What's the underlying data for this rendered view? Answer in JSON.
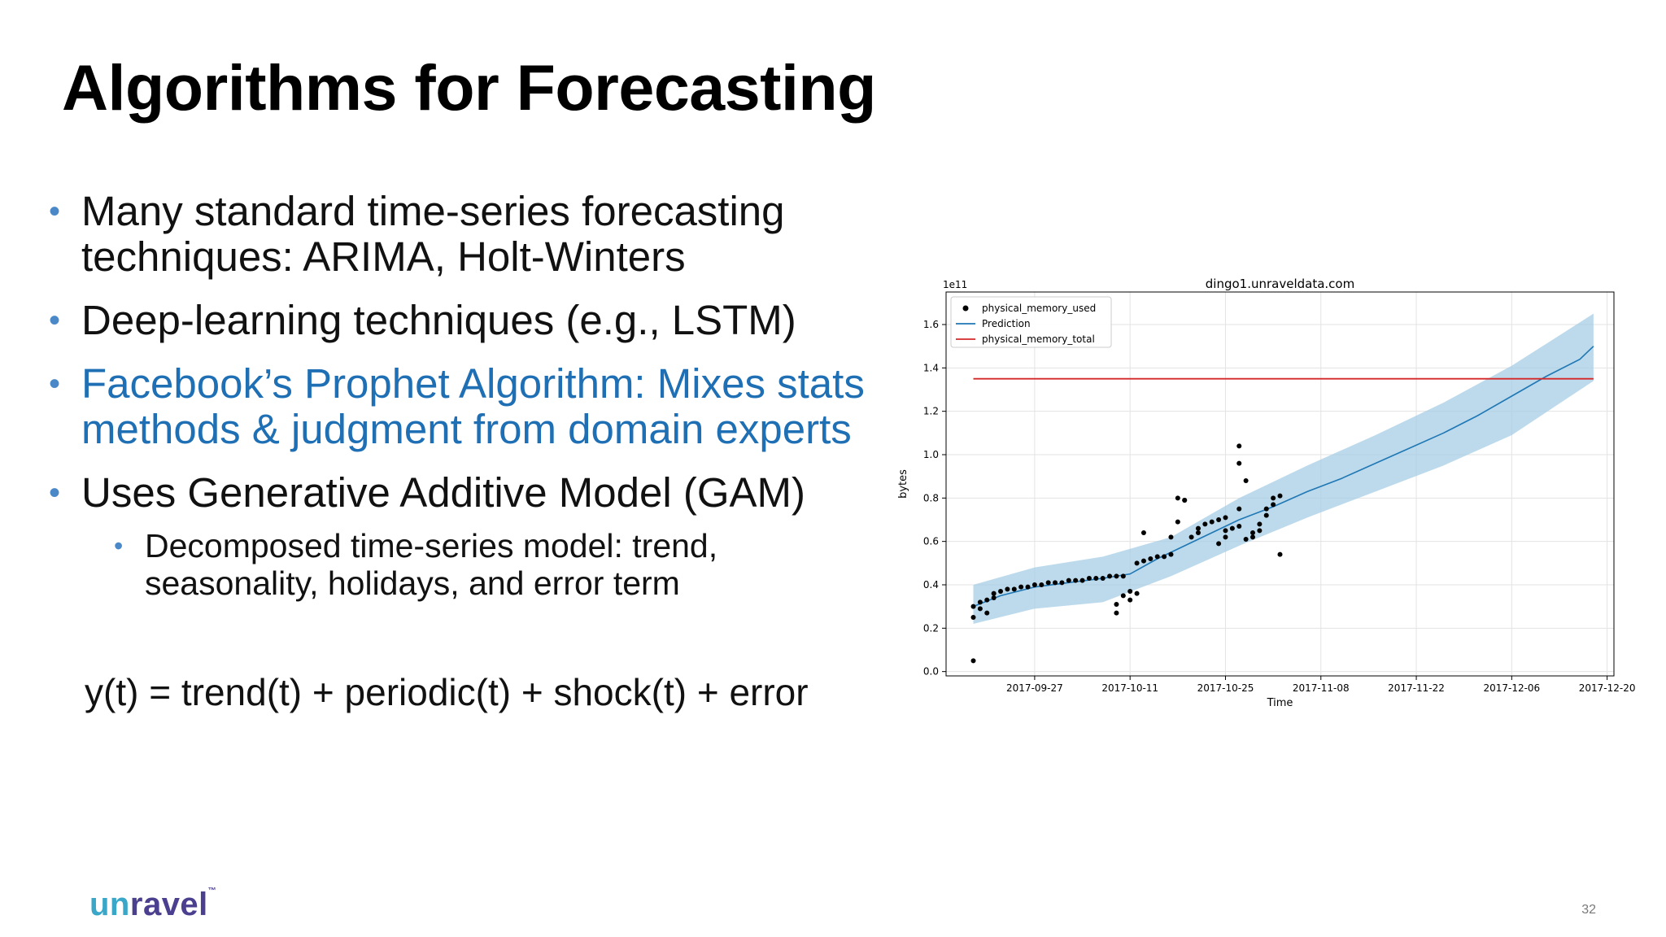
{
  "slide": {
    "title": "Algorithms for Forecasting",
    "bullets": [
      {
        "text": "Many standard time-series forecasting techniques: ARIMA, Holt-Winters"
      },
      {
        "text": "Deep-learning techniques (e.g., LSTM)"
      },
      {
        "text": "Facebook’s Prophet Algorithm: Mixes stats methods & judgment from domain experts"
      },
      {
        "text": "Uses Generative Additive Model (GAM)"
      }
    ],
    "sub_bullets": [
      {
        "text": "Decomposed time-series model: trend, seasonality, holidays, and error term"
      }
    ],
    "bullet_glyph": "•",
    "equation": "y(t) = trend(t) + periodic(t) + shock(t) + error",
    "logo": {
      "text_un": "un",
      "text_ravel": "ravel",
      "mark": "™"
    },
    "page_number": "32",
    "colors": {
      "accent_text": "#1f6fb5",
      "bullet": "#4a88c7",
      "logo_teal": "#3aa7c9",
      "logo_purple": "#4b3f8f"
    }
  },
  "chart_data": {
    "type": "line",
    "title": "dingo1.unraveldata.com",
    "xlabel": "Time",
    "ylabel": "bytes",
    "y_scale_label": "1e11",
    "x_ticks": [
      "2017-09-27",
      "2017-10-11",
      "2017-10-25",
      "2017-11-08",
      "2017-11-22",
      "2017-12-06",
      "2017-12-20"
    ],
    "y_ticks": [
      "0.0",
      "0.2",
      "0.4",
      "0.6",
      "0.8",
      "1.0",
      "1.2",
      "1.4",
      "1.6"
    ],
    "xlim": [
      "2017-09-14",
      "2017-12-21"
    ],
    "ylim": [
      -0.02,
      1.75
    ],
    "grid": true,
    "legend_position": "top-left",
    "series": [
      {
        "name": "physical_memory_used",
        "kind": "scatter",
        "color": "#000000",
        "points": [
          [
            "2017-09-18",
            0.05
          ],
          [
            "2017-09-18",
            0.25
          ],
          [
            "2017-09-18",
            0.3
          ],
          [
            "2017-09-19",
            0.29
          ],
          [
            "2017-09-19",
            0.32
          ],
          [
            "2017-09-20",
            0.27
          ],
          [
            "2017-09-20",
            0.33
          ],
          [
            "2017-09-21",
            0.34
          ],
          [
            "2017-09-21",
            0.36
          ],
          [
            "2017-09-22",
            0.37
          ],
          [
            "2017-09-23",
            0.38
          ],
          [
            "2017-09-24",
            0.38
          ],
          [
            "2017-09-25",
            0.39
          ],
          [
            "2017-09-26",
            0.39
          ],
          [
            "2017-09-27",
            0.4
          ],
          [
            "2017-09-28",
            0.4
          ],
          [
            "2017-09-29",
            0.41
          ],
          [
            "2017-09-30",
            0.41
          ],
          [
            "2017-10-01",
            0.41
          ],
          [
            "2017-10-02",
            0.42
          ],
          [
            "2017-10-03",
            0.42
          ],
          [
            "2017-10-04",
            0.42
          ],
          [
            "2017-10-05",
            0.43
          ],
          [
            "2017-10-06",
            0.43
          ],
          [
            "2017-10-07",
            0.43
          ],
          [
            "2017-10-08",
            0.44
          ],
          [
            "2017-10-09",
            0.44
          ],
          [
            "2017-10-10",
            0.44
          ],
          [
            "2017-10-09",
            0.31
          ],
          [
            "2017-10-09",
            0.27
          ],
          [
            "2017-10-10",
            0.35
          ],
          [
            "2017-10-11",
            0.33
          ],
          [
            "2017-10-11",
            0.37
          ],
          [
            "2017-10-12",
            0.36
          ],
          [
            "2017-10-12",
            0.5
          ],
          [
            "2017-10-13",
            0.51
          ],
          [
            "2017-10-13",
            0.64
          ],
          [
            "2017-10-14",
            0.52
          ],
          [
            "2017-10-15",
            0.53
          ],
          [
            "2017-10-16",
            0.53
          ],
          [
            "2017-10-17",
            0.54
          ],
          [
            "2017-10-17",
            0.62
          ],
          [
            "2017-10-18",
            0.69
          ],
          [
            "2017-10-18",
            0.8
          ],
          [
            "2017-10-19",
            0.79
          ],
          [
            "2017-10-19",
            0.79
          ],
          [
            "2017-10-20",
            0.62
          ],
          [
            "2017-10-21",
            0.64
          ],
          [
            "2017-10-21",
            0.66
          ],
          [
            "2017-10-22",
            0.68
          ],
          [
            "2017-10-23",
            0.69
          ],
          [
            "2017-10-24",
            0.7
          ],
          [
            "2017-10-25",
            0.71
          ],
          [
            "2017-10-24",
            0.59
          ],
          [
            "2017-10-25",
            0.62
          ],
          [
            "2017-10-25",
            0.65
          ],
          [
            "2017-10-26",
            0.66
          ],
          [
            "2017-10-27",
            0.67
          ],
          [
            "2017-10-27",
            0.75
          ],
          [
            "2017-10-27",
            0.96
          ],
          [
            "2017-10-27",
            1.04
          ],
          [
            "2017-10-28",
            0.88
          ],
          [
            "2017-10-28",
            0.61
          ],
          [
            "2017-10-29",
            0.62
          ],
          [
            "2017-10-29",
            0.64
          ],
          [
            "2017-10-30",
            0.65
          ],
          [
            "2017-10-30",
            0.68
          ],
          [
            "2017-10-31",
            0.72
          ],
          [
            "2017-10-31",
            0.75
          ],
          [
            "2017-11-01",
            0.77
          ],
          [
            "2017-11-01",
            0.8
          ],
          [
            "2017-11-02",
            0.81
          ],
          [
            "2017-11-02",
            0.54
          ]
        ]
      },
      {
        "name": "Prediction",
        "kind": "line_with_interval",
        "color": "#1f77b4",
        "band_color": "#a6cde6",
        "points": [
          [
            "2017-09-18",
            0.3
          ],
          [
            "2017-09-22",
            0.35
          ],
          [
            "2017-09-27",
            0.39
          ],
          [
            "2017-10-02",
            0.41
          ],
          [
            "2017-10-07",
            0.43
          ],
          [
            "2017-10-11",
            0.45
          ],
          [
            "2017-10-15",
            0.52
          ],
          [
            "2017-10-19",
            0.58
          ],
          [
            "2017-10-23",
            0.64
          ],
          [
            "2017-10-27",
            0.7
          ],
          [
            "2017-11-01",
            0.76
          ],
          [
            "2017-11-06",
            0.83
          ],
          [
            "2017-11-11",
            0.89
          ],
          [
            "2017-11-16",
            0.96
          ],
          [
            "2017-11-21",
            1.03
          ],
          [
            "2017-11-26",
            1.1
          ],
          [
            "2017-12-01",
            1.18
          ],
          [
            "2017-12-06",
            1.27
          ],
          [
            "2017-12-11",
            1.36
          ],
          [
            "2017-12-16",
            1.44
          ],
          [
            "2017-12-18",
            1.5
          ]
        ],
        "lower": [
          [
            "2017-09-18",
            0.22
          ],
          [
            "2017-09-27",
            0.29
          ],
          [
            "2017-10-07",
            0.32
          ],
          [
            "2017-10-17",
            0.44
          ],
          [
            "2017-10-27",
            0.58
          ],
          [
            "2017-11-06",
            0.71
          ],
          [
            "2017-11-16",
            0.83
          ],
          [
            "2017-11-26",
            0.95
          ],
          [
            "2017-12-06",
            1.09
          ],
          [
            "2017-12-18",
            1.34
          ]
        ],
        "upper": [
          [
            "2017-09-18",
            0.4
          ],
          [
            "2017-09-27",
            0.48
          ],
          [
            "2017-10-07",
            0.53
          ],
          [
            "2017-10-17",
            0.62
          ],
          [
            "2017-10-27",
            0.8
          ],
          [
            "2017-11-06",
            0.95
          ],
          [
            "2017-11-16",
            1.09
          ],
          [
            "2017-11-26",
            1.24
          ],
          [
            "2017-12-06",
            1.41
          ],
          [
            "2017-12-18",
            1.65
          ]
        ]
      },
      {
        "name": "physical_memory_total",
        "kind": "line",
        "color": "#d62728",
        "points": [
          [
            "2017-09-18",
            1.35
          ],
          [
            "2017-12-18",
            1.35
          ]
        ]
      }
    ]
  }
}
